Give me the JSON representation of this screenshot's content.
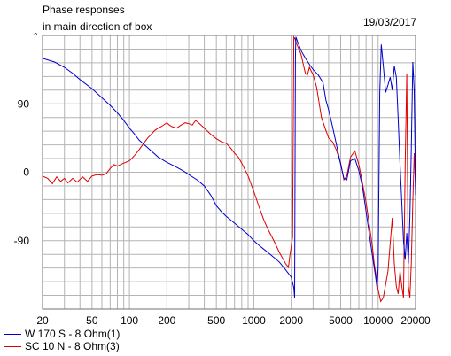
{
  "header": {
    "title_line1": "Phase responses",
    "title_line2": "in main direction of box",
    "date": "19/03/2017",
    "y_unit": "°"
  },
  "legend": [
    {
      "label": "W 170 S - 8 Ohm(1)",
      "color": "#0000cc"
    },
    {
      "label": "SC 10 N - 8 Ohm(3)",
      "color": "#dd0000"
    }
  ],
  "chart_data": {
    "type": "line",
    "x_scale": "log",
    "xlim": [
      20,
      20000
    ],
    "ylim": [
      -180,
      180
    ],
    "grid": true,
    "x_ticks": [
      20,
      50,
      100,
      200,
      500,
      1000,
      2000,
      5000,
      10000,
      20000
    ],
    "x_tick_labels": [
      "20",
      "50",
      "100",
      "200",
      "500",
      "1000",
      "2000",
      "5000",
      "10000",
      "20000"
    ],
    "y_ticks": [
      90,
      0,
      -90
    ],
    "y_tick_labels": [
      "90",
      "0",
      "-90"
    ],
    "series": [
      {
        "name": "W 170 S - 8 Ohm(1)",
        "color": "#0000cc",
        "points": [
          [
            20,
            150
          ],
          [
            25,
            145
          ],
          [
            30,
            138
          ],
          [
            35,
            130
          ],
          [
            40,
            122
          ],
          [
            50,
            110
          ],
          [
            60,
            98
          ],
          [
            70,
            88
          ],
          [
            80,
            78
          ],
          [
            90,
            68
          ],
          [
            100,
            58
          ],
          [
            110,
            50
          ],
          [
            120,
            42
          ],
          [
            130,
            37
          ],
          [
            150,
            28
          ],
          [
            170,
            20
          ],
          [
            200,
            13
          ],
          [
            230,
            8
          ],
          [
            270,
            2
          ],
          [
            300,
            -3
          ],
          [
            350,
            -10
          ],
          [
            400,
            -18
          ],
          [
            450,
            -30
          ],
          [
            500,
            -44
          ],
          [
            550,
            -52
          ],
          [
            600,
            -58
          ],
          [
            700,
            -67
          ],
          [
            800,
            -75
          ],
          [
            900,
            -82
          ],
          [
            1000,
            -90
          ],
          [
            1100,
            -96
          ],
          [
            1200,
            -101
          ],
          [
            1400,
            -110
          ],
          [
            1600,
            -118
          ],
          [
            1800,
            -128
          ],
          [
            2000,
            -138
          ],
          [
            2100,
            -152
          ],
          [
            2130,
            -165
          ],
          [
            2160,
            150
          ],
          [
            2180,
            178
          ],
          [
            2250,
            172
          ],
          [
            2400,
            160
          ],
          [
            2600,
            150
          ],
          [
            2800,
            142
          ],
          [
            3000,
            135
          ],
          [
            3300,
            128
          ],
          [
            3600,
            118
          ],
          [
            3800,
            95
          ],
          [
            4000,
            82
          ],
          [
            4300,
            60
          ],
          [
            4600,
            38
          ],
          [
            5000,
            10
          ],
          [
            5300,
            -8
          ],
          [
            5600,
            -10
          ],
          [
            6000,
            15
          ],
          [
            6500,
            18
          ],
          [
            7000,
            2
          ],
          [
            7500,
            -20
          ],
          [
            8000,
            -52
          ],
          [
            8500,
            -82
          ],
          [
            9000,
            -110
          ],
          [
            9500,
            -135
          ],
          [
            9800,
            -152
          ],
          [
            10000,
            -125
          ],
          [
            10300,
            105
          ],
          [
            10600,
            168
          ],
          [
            11000,
            140
          ],
          [
            11500,
            105
          ],
          [
            12000,
            115
          ],
          [
            12500,
            125
          ],
          [
            13000,
            108
          ],
          [
            13500,
            140
          ],
          [
            14000,
            125
          ],
          [
            14500,
            70
          ],
          [
            15000,
            10
          ],
          [
            15500,
            -40
          ],
          [
            16000,
            -90
          ],
          [
            16500,
            -115
          ],
          [
            17000,
            -80
          ],
          [
            17500,
            -120
          ],
          [
            18000,
            -60
          ],
          [
            18500,
            30
          ],
          [
            19000,
            145
          ],
          [
            19500,
            108
          ],
          [
            20000,
            -30
          ]
        ]
      },
      {
        "name": "SC 10 N - 8 Ohm(3)",
        "color": "#dd0000",
        "points": [
          [
            20,
            -5
          ],
          [
            22,
            -8
          ],
          [
            24,
            -15
          ],
          [
            26,
            -6
          ],
          [
            28,
            -12
          ],
          [
            30,
            -8
          ],
          [
            32,
            -14
          ],
          [
            35,
            -8
          ],
          [
            38,
            -13
          ],
          [
            42,
            -6
          ],
          [
            46,
            -12
          ],
          [
            50,
            -5
          ],
          [
            55,
            -3
          ],
          [
            60,
            -4
          ],
          [
            65,
            -2
          ],
          [
            70,
            5
          ],
          [
            75,
            10
          ],
          [
            80,
            8
          ],
          [
            90,
            12
          ],
          [
            100,
            15
          ],
          [
            110,
            22
          ],
          [
            120,
            30
          ],
          [
            130,
            38
          ],
          [
            140,
            45
          ],
          [
            150,
            50
          ],
          [
            160,
            55
          ],
          [
            170,
            58
          ],
          [
            180,
            60
          ],
          [
            200,
            65
          ],
          [
            210,
            62
          ],
          [
            220,
            60
          ],
          [
            240,
            58
          ],
          [
            260,
            62
          ],
          [
            280,
            65
          ],
          [
            300,
            64
          ],
          [
            320,
            62
          ],
          [
            340,
            68
          ],
          [
            360,
            65
          ],
          [
            400,
            58
          ],
          [
            450,
            50
          ],
          [
            500,
            44
          ],
          [
            550,
            40
          ],
          [
            600,
            38
          ],
          [
            650,
            32
          ],
          [
            700,
            25
          ],
          [
            750,
            20
          ],
          [
            800,
            12
          ],
          [
            900,
            -5
          ],
          [
            1000,
            -25
          ],
          [
            1100,
            -45
          ],
          [
            1200,
            -62
          ],
          [
            1300,
            -75
          ],
          [
            1400,
            -85
          ],
          [
            1500,
            -95
          ],
          [
            1600,
            -105
          ],
          [
            1800,
            -120
          ],
          [
            1900,
            -125
          ],
          [
            1950,
            -110
          ],
          [
            2000,
            -98
          ],
          [
            2050,
            -85
          ],
          [
            2100,
            178
          ],
          [
            2150,
            175
          ],
          [
            2200,
            170
          ],
          [
            2400,
            155
          ],
          [
            2500,
            142
          ],
          [
            2600,
            130
          ],
          [
            2700,
            128
          ],
          [
            2800,
            138
          ],
          [
            3000,
            128
          ],
          [
            3200,
            112
          ],
          [
            3500,
            72
          ],
          [
            3800,
            55
          ],
          [
            4000,
            45
          ],
          [
            4300,
            40
          ],
          [
            4600,
            30
          ],
          [
            5000,
            12
          ],
          [
            5300,
            -10
          ],
          [
            5600,
            -5
          ],
          [
            6000,
            20
          ],
          [
            6500,
            28
          ],
          [
            7000,
            10
          ],
          [
            7500,
            -15
          ],
          [
            8000,
            -40
          ],
          [
            8500,
            -70
          ],
          [
            9000,
            -98
          ],
          [
            9300,
            -120
          ],
          [
            9600,
            -135
          ],
          [
            10000,
            -155
          ],
          [
            10500,
            -170
          ],
          [
            11000,
            -165
          ],
          [
            12000,
            -130
          ],
          [
            13000,
            -60
          ],
          [
            13500,
            -120
          ],
          [
            14000,
            -150
          ],
          [
            14500,
            -160
          ],
          [
            15000,
            -130
          ],
          [
            15500,
            -150
          ],
          [
            16000,
            -165
          ],
          [
            16500,
            10
          ],
          [
            17000,
            130
          ],
          [
            17500,
            -150
          ],
          [
            18000,
            -165
          ],
          [
            18500,
            -120
          ],
          [
            19000,
            -40
          ],
          [
            19500,
            25
          ],
          [
            20000,
            -20
          ]
        ]
      }
    ]
  }
}
